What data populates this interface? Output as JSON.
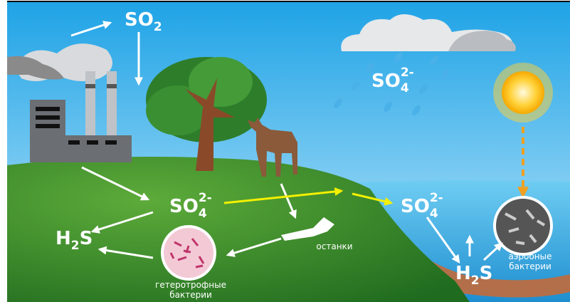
{
  "formulas": [
    {
      "base": "SO",
      "sub": "2"
    },
    {
      "base": "SO",
      "sub": "4",
      "sup": "2-"
    },
    {
      "base": "SO",
      "sub": "4",
      "sup": "2-"
    },
    {
      "base": "SO",
      "sub": "4",
      "sup": "2-"
    },
    {
      "base": "H",
      "sub": "2",
      "rest": "S"
    },
    {
      "base": "H",
      "sub": "2",
      "rest": "S"
    }
  ],
  "labels": {
    "remains": "останки",
    "heterotrophic": [
      "гетеротрофные",
      "бактерии"
    ],
    "aerobic": [
      "аэробные",
      "бактерии"
    ]
  }
}
